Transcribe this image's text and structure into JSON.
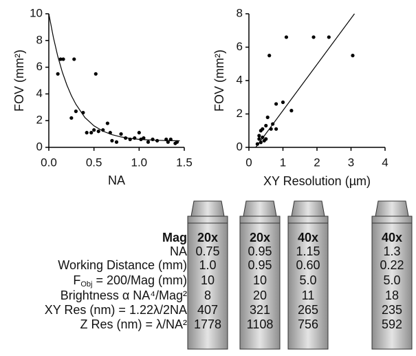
{
  "chart_data": [
    {
      "type": "scatter",
      "xlabel": "NA",
      "ylabel": "FOV (mm²)",
      "x": [
        0.1,
        0.13,
        0.16,
        0.25,
        0.28,
        0.3,
        0.38,
        0.42,
        0.47,
        0.5,
        0.52,
        0.55,
        0.6,
        0.65,
        0.68,
        0.7,
        0.75,
        0.8,
        0.85,
        0.9,
        0.95,
        1.0,
        1.02,
        1.05,
        1.1,
        1.15,
        1.2,
        1.3,
        1.32,
        1.35,
        1.4,
        1.42
      ],
      "values": [
        5.5,
        6.6,
        6.6,
        2.2,
        6.6,
        2.7,
        2.6,
        1.1,
        1.1,
        1.3,
        5.5,
        1.2,
        1.3,
        1.8,
        1.1,
        0.5,
        0.4,
        1.0,
        0.7,
        0.6,
        0.7,
        1.1,
        0.6,
        0.7,
        0.4,
        0.6,
        0.5,
        0.6,
        0.4,
        0.6,
        0.3,
        0.4
      ],
      "color": "#000000",
      "fit": {
        "x": [
          0,
          0.05,
          0.1,
          0.15,
          0.2,
          0.25,
          0.3,
          0.4,
          0.5,
          0.6,
          0.7,
          0.8,
          0.9,
          1.0,
          1.1,
          1.2,
          1.3,
          1.45
        ],
        "values": [
          10,
          8.24,
          6.8,
          5.62,
          4.66,
          3.87,
          3.22,
          2.23,
          1.61,
          1.21,
          0.95,
          0.78,
          0.67,
          0.6,
          0.56,
          0.53,
          0.51,
          0.49
        ]
      },
      "xlim": [
        0,
        1.5
      ],
      "xticks": [
        {
          "value": 0,
          "label": "0.0"
        },
        0.5,
        {
          "value": 1,
          "label": "1.0"
        },
        1.5
      ],
      "ylim": [
        0,
        10
      ],
      "yticks": [
        0,
        2,
        4,
        6,
        8,
        10
      ]
    },
    {
      "type": "scatter",
      "xlabel": "XY Resolution (µm)",
      "ylabel": "FOV (mm²)",
      "x": [
        0.25,
        0.3,
        0.3,
        0.35,
        0.35,
        0.4,
        0.4,
        0.45,
        0.5,
        0.5,
        0.55,
        0.6,
        0.65,
        0.7,
        0.8,
        0.8,
        1.0,
        1.1,
        1.25,
        1.9,
        2.35,
        3.05
      ],
      "values": [
        0.2,
        0.5,
        0.7,
        0.3,
        1.0,
        0.6,
        1.1,
        0.4,
        1.3,
        0.5,
        1.8,
        5.5,
        1.1,
        1.4,
        1.1,
        2.6,
        2.7,
        6.6,
        2.2,
        6.6,
        6.6,
        5.5
      ],
      "color": "#000000",
      "fit": {
        "x": [
          0.2,
          3.1
        ],
        "values": [
          0,
          8
        ]
      },
      "xlim": [
        0,
        4
      ],
      "xticks": [
        0,
        1,
        2,
        3,
        4
      ],
      "ylim": [
        0,
        8
      ],
      "yticks": [
        0,
        2,
        4,
        6,
        8
      ]
    }
  ],
  "table": {
    "row_labels": [
      "Mag",
      "NA",
      "Working Distance (mm)",
      {
        "main": "F",
        "sub": "Obj",
        "rest": " = 200/Mag (mm)"
      },
      "Brightness α NA⁴/Mag²",
      "XY Res (nm) = 1.22λ/2NA",
      "Z Res (nm) = λ/NA²"
    ],
    "columns": [
      {
        "header": "20x",
        "values": [
          "0.75",
          "1.0",
          "10",
          "8",
          "407",
          "1778"
        ]
      },
      {
        "header": "20x",
        "values": [
          "0.95",
          "0.95",
          "10",
          "20",
          "321",
          "1108"
        ]
      },
      {
        "header": "40x",
        "values": [
          "1.15",
          "0.60",
          "5.0",
          "11",
          "265",
          "756"
        ]
      },
      {
        "header": "40x",
        "values": [
          "1.3",
          "0.22",
          "5.0",
          "18",
          "235",
          "592"
        ]
      }
    ]
  }
}
